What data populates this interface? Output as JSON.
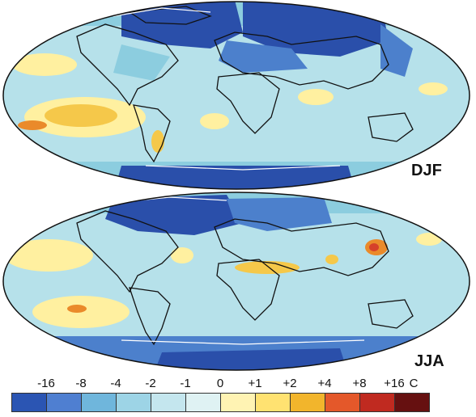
{
  "maps": [
    {
      "season": "DJF",
      "label": "DJF"
    },
    {
      "season": "JJA",
      "label": "JJA"
    }
  ],
  "colorbar": {
    "ticks": [
      "-16",
      "-8",
      "-4",
      "-2",
      "-1",
      "0",
      "+1",
      "+2",
      "+4",
      "+8",
      "+16"
    ],
    "unit": "C",
    "colors": [
      "#2b55b3",
      "#4f7fd1",
      "#6fb6dc",
      "#9dd4e6",
      "#c4e6ee",
      "#dff2f3",
      "#fff3b3",
      "#ffe271",
      "#f2b52c",
      "#e4582a",
      "#c02a20",
      "#661010"
    ]
  },
  "palette": {
    "ocean_base": "#b6e1ea",
    "cold_strong": "#2a4faa",
    "cold_mid": "#4c80cc",
    "cool": "#8ccddf",
    "warm_light": "#fff0a0",
    "warm": "#f5c84a",
    "warm_strong": "#ea8a2a",
    "hot": "#d6402a",
    "coastline": "#111111"
  }
}
